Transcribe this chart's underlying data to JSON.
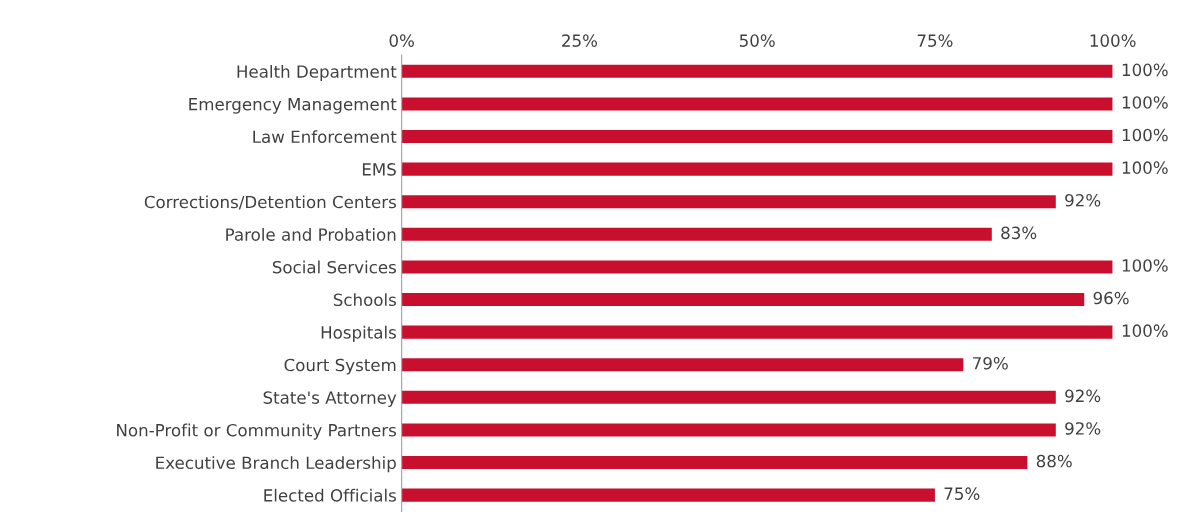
{
  "chart_data": {
    "type": "bar",
    "orientation": "horizontal",
    "categories": [
      "Health Department",
      "Emergency Management",
      "Law Enforcement",
      "EMS",
      "Corrections/Detention Centers",
      "Parole and Probation",
      "Social Services",
      "Schools",
      "Hospitals",
      "Court System",
      "State's Attorney",
      "Non-Profit or Community Partners",
      "Executive Branch Leadership",
      "Elected Officials"
    ],
    "values": [
      100,
      100,
      100,
      100,
      92,
      83,
      100,
      96,
      100,
      79,
      92,
      92,
      88,
      75
    ],
    "value_labels": [
      "100%",
      "100%",
      "100%",
      "100%",
      "92%",
      "83%",
      "100%",
      "96%",
      "100%",
      "79%",
      "92%",
      "92%",
      "88%",
      "75%"
    ],
    "color": "#c8102e",
    "xlim": [
      0,
      100
    ],
    "xticks": [
      {
        "value": 0,
        "label": "0%"
      },
      {
        "value": 25,
        "label": "25%"
      },
      {
        "value": 50,
        "label": "50%"
      },
      {
        "value": 75,
        "label": "75%"
      },
      {
        "value": 100,
        "label": "100%"
      }
    ],
    "grid": false
  }
}
